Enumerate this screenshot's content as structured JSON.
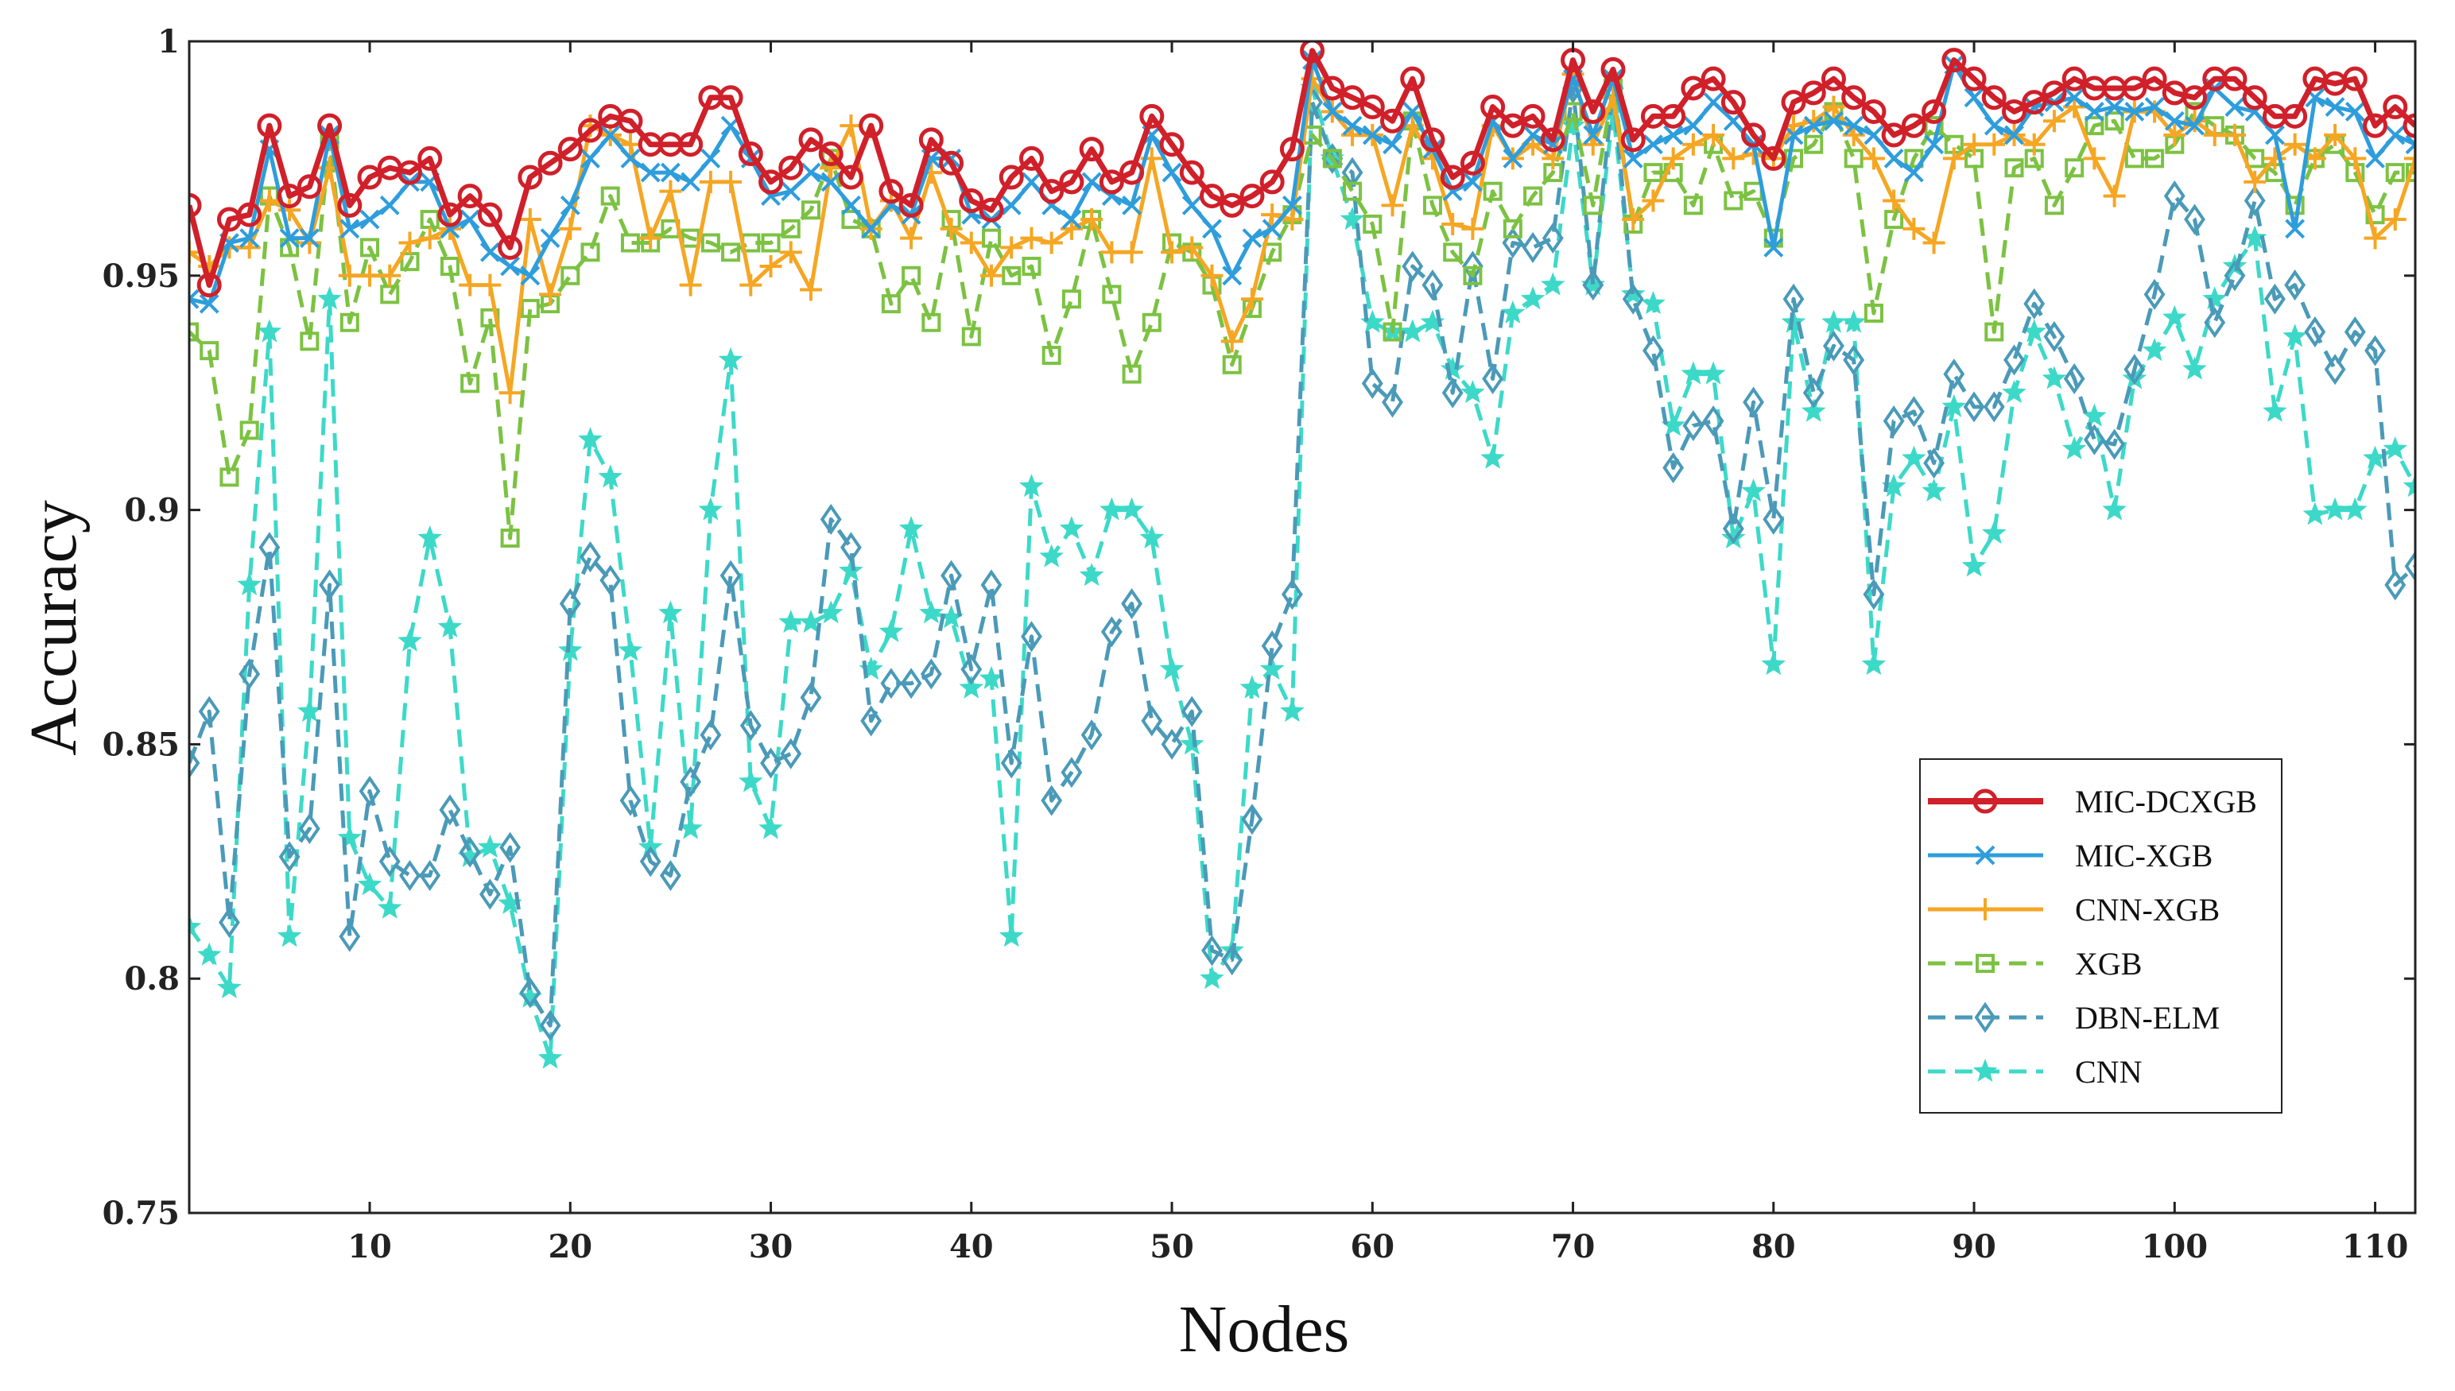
{
  "chart_data": {
    "type": "line",
    "title": "",
    "xlabel": "Nodes",
    "ylabel": "Accuracy",
    "xlim": [
      1,
      112
    ],
    "ylim": [
      0.75,
      1
    ],
    "xticks": [
      10,
      20,
      30,
      40,
      50,
      60,
      70,
      80,
      90,
      100,
      110
    ],
    "yticks": [
      0.75,
      0.8,
      0.85,
      0.9,
      0.95,
      1
    ],
    "ytick_labels": [
      "0.75",
      "0.8",
      "0.85",
      "0.9",
      "0.95",
      "1"
    ],
    "legend_position": "right",
    "grid": false,
    "x": [
      1,
      2,
      3,
      4,
      5,
      6,
      7,
      8,
      9,
      10,
      11,
      12,
      13,
      14,
      15,
      16,
      17,
      18,
      19,
      20,
      21,
      22,
      23,
      24,
      25,
      26,
      27,
      28,
      29,
      30,
      31,
      32,
      33,
      34,
      35,
      36,
      37,
      38,
      39,
      40,
      41,
      42,
      43,
      44,
      45,
      46,
      47,
      48,
      49,
      50,
      51,
      52,
      53,
      54,
      55,
      56,
      57,
      58,
      59,
      60,
      61,
      62,
      63,
      64,
      65,
      66,
      67,
      68,
      69,
      70,
      71,
      72,
      73,
      74,
      75,
      76,
      77,
      78,
      79,
      80,
      81,
      82,
      83,
      84,
      85,
      86,
      87,
      88,
      89,
      90,
      91,
      92,
      93,
      94,
      95,
      96,
      97,
      98,
      99,
      100,
      101,
      102,
      103,
      104,
      105,
      106,
      107,
      108,
      109,
      110,
      111,
      112
    ],
    "series": [
      {
        "name": "MIC-DCXGB",
        "color": "#d0202a",
        "dash": false,
        "marker": "circle",
        "values": [
          0.965,
          0.948,
          0.962,
          0.963,
          0.982,
          0.967,
          0.969,
          0.982,
          0.965,
          0.971,
          0.973,
          0.972,
          0.975,
          0.963,
          0.967,
          0.963,
          0.956,
          0.971,
          0.974,
          0.977,
          0.981,
          0.984,
          0.983,
          0.978,
          0.978,
          0.978,
          0.988,
          0.988,
          0.976,
          0.97,
          0.973,
          0.979,
          0.976,
          0.971,
          0.982,
          0.968,
          0.965,
          0.979,
          0.974,
          0.966,
          0.964,
          0.971,
          0.975,
          0.968,
          0.97,
          0.977,
          0.97,
          0.972,
          0.984,
          0.978,
          0.972,
          0.967,
          0.965,
          0.967,
          0.97,
          0.977,
          0.998,
          0.99,
          0.988,
          0.986,
          0.983,
          0.992,
          0.979,
          0.971,
          0.974,
          0.986,
          0.982,
          0.984,
          0.979,
          0.996,
          0.985,
          0.994,
          0.979,
          0.984,
          0.984,
          0.99,
          0.992,
          0.987,
          0.98,
          0.975,
          0.987,
          0.989,
          0.992,
          0.988,
          0.985,
          0.98,
          0.982,
          0.985,
          0.996,
          0.992,
          0.988,
          0.985,
          0.987,
          0.989,
          0.992,
          0.99,
          0.99,
          0.99,
          0.992,
          0.989,
          0.988,
          0.992,
          0.992,
          0.988,
          0.984,
          0.984,
          0.992,
          0.991,
          0.992,
          0.982,
          0.986,
          0.982
        ]
      },
      {
        "name": "MIC-XGB",
        "color": "#2e9ddc",
        "dash": false,
        "marker": "x",
        "values": [
          0.945,
          0.944,
          0.957,
          0.958,
          0.977,
          0.958,
          0.958,
          0.98,
          0.96,
          0.962,
          0.965,
          0.97,
          0.97,
          0.96,
          0.962,
          0.955,
          0.952,
          0.95,
          0.958,
          0.965,
          0.975,
          0.98,
          0.975,
          0.972,
          0.972,
          0.97,
          0.975,
          0.982,
          0.975,
          0.967,
          0.968,
          0.972,
          0.97,
          0.965,
          0.96,
          0.965,
          0.963,
          0.975,
          0.975,
          0.963,
          0.962,
          0.965,
          0.97,
          0.965,
          0.962,
          0.97,
          0.967,
          0.965,
          0.98,
          0.972,
          0.965,
          0.96,
          0.95,
          0.958,
          0.96,
          0.965,
          0.996,
          0.985,
          0.982,
          0.98,
          0.978,
          0.985,
          0.977,
          0.968,
          0.97,
          0.983,
          0.975,
          0.98,
          0.978,
          0.992,
          0.98,
          0.992,
          0.975,
          0.978,
          0.98,
          0.982,
          0.987,
          0.983,
          0.978,
          0.956,
          0.98,
          0.982,
          0.983,
          0.982,
          0.98,
          0.975,
          0.972,
          0.978,
          0.995,
          0.988,
          0.982,
          0.98,
          0.986,
          0.987,
          0.988,
          0.985,
          0.986,
          0.985,
          0.986,
          0.983,
          0.982,
          0.99,
          0.986,
          0.985,
          0.98,
          0.96,
          0.988,
          0.986,
          0.985,
          0.975,
          0.98,
          0.978
        ]
      },
      {
        "name": "CNN-XGB",
        "color": "#f5a623",
        "dash": false,
        "marker": "plus",
        "values": [
          0.955,
          0.952,
          0.956,
          0.956,
          0.966,
          0.964,
          0.957,
          0.973,
          0.95,
          0.95,
          0.95,
          0.957,
          0.958,
          0.96,
          0.948,
          0.948,
          0.925,
          0.962,
          0.946,
          0.96,
          0.982,
          0.98,
          0.978,
          0.958,
          0.968,
          0.948,
          0.97,
          0.97,
          0.948,
          0.952,
          0.955,
          0.947,
          0.973,
          0.982,
          0.96,
          0.966,
          0.958,
          0.972,
          0.96,
          0.957,
          0.95,
          0.956,
          0.958,
          0.957,
          0.96,
          0.962,
          0.955,
          0.955,
          0.975,
          0.955,
          0.956,
          0.95,
          0.936,
          0.945,
          0.963,
          0.962,
          0.992,
          0.985,
          0.98,
          0.98,
          0.965,
          0.982,
          0.975,
          0.961,
          0.96,
          0.982,
          0.975,
          0.978,
          0.975,
          0.993,
          0.978,
          0.988,
          0.962,
          0.966,
          0.975,
          0.978,
          0.98,
          0.975,
          0.976,
          0.975,
          0.982,
          0.983,
          0.986,
          0.98,
          0.975,
          0.966,
          0.96,
          0.957,
          0.975,
          0.978,
          0.978,
          0.98,
          0.978,
          0.983,
          0.986,
          0.975,
          0.967,
          0.985,
          0.985,
          0.98,
          0.983,
          0.98,
          0.98,
          0.97,
          0.975,
          0.978,
          0.975,
          0.98,
          0.975,
          0.958,
          0.962,
          0.975
        ]
      },
      {
        "name": "XGB",
        "color": "#7cc242",
        "dash": true,
        "marker": "square",
        "values": [
          0.938,
          0.934,
          0.907,
          0.917,
          0.967,
          0.956,
          0.936,
          0.979,
          0.94,
          0.956,
          0.946,
          0.953,
          0.962,
          0.952,
          0.927,
          0.941,
          0.894,
          0.943,
          0.944,
          0.95,
          0.955,
          0.967,
          0.957,
          0.957,
          0.96,
          0.958,
          0.957,
          0.955,
          0.957,
          0.957,
          0.96,
          0.964,
          0.975,
          0.962,
          0.96,
          0.944,
          0.95,
          0.94,
          0.962,
          0.937,
          0.958,
          0.95,
          0.952,
          0.933,
          0.945,
          0.962,
          0.946,
          0.929,
          0.94,
          0.957,
          0.955,
          0.948,
          0.931,
          0.943,
          0.955,
          0.963,
          0.98,
          0.975,
          0.968,
          0.961,
          0.938,
          0.983,
          0.965,
          0.955,
          0.95,
          0.968,
          0.96,
          0.967,
          0.972,
          0.985,
          0.965,
          0.99,
          0.961,
          0.972,
          0.972,
          0.965,
          0.978,
          0.966,
          0.968,
          0.958,
          0.975,
          0.978,
          0.985,
          0.975,
          0.942,
          0.962,
          0.975,
          0.982,
          0.978,
          0.975,
          0.938,
          0.973,
          0.975,
          0.965,
          0.973,
          0.982,
          0.983,
          0.975,
          0.975,
          0.978,
          0.985,
          0.982,
          0.98,
          0.975,
          0.972,
          0.965,
          0.975,
          0.978,
          0.972,
          0.963,
          0.972,
          0.972
        ]
      },
      {
        "name": "DBN-ELM",
        "color": "#4a9ab8",
        "dash": true,
        "marker": "diamond",
        "values": [
          0.846,
          0.857,
          0.812,
          0.865,
          0.892,
          0.826,
          0.832,
          0.884,
          0.809,
          0.84,
          0.825,
          0.822,
          0.822,
          0.836,
          0.827,
          0.818,
          0.828,
          0.797,
          0.79,
          0.88,
          0.89,
          0.885,
          0.838,
          0.825,
          0.822,
          0.842,
          0.852,
          0.886,
          0.854,
          0.846,
          0.848,
          0.86,
          0.898,
          0.892,
          0.855,
          0.863,
          0.863,
          0.865,
          0.886,
          0.866,
          0.884,
          0.846,
          0.873,
          0.838,
          0.844,
          0.852,
          0.874,
          0.88,
          0.855,
          0.85,
          0.857,
          0.806,
          0.804,
          0.834,
          0.871,
          0.882,
          0.987,
          0.975,
          0.972,
          0.927,
          0.923,
          0.952,
          0.948,
          0.925,
          0.952,
          0.928,
          0.957,
          0.956,
          0.958,
          0.99,
          0.948,
          0.99,
          0.945,
          0.934,
          0.909,
          0.918,
          0.919,
          0.896,
          0.923,
          0.898,
          0.945,
          0.925,
          0.935,
          0.932,
          0.882,
          0.919,
          0.921,
          0.91,
          0.929,
          0.922,
          0.922,
          0.932,
          0.944,
          0.937,
          0.928,
          0.915,
          0.914,
          0.93,
          0.946,
          0.967,
          0.962,
          0.94,
          0.95,
          0.966,
          0.945,
          0.948,
          0.938,
          0.93,
          0.938,
          0.934,
          0.884,
          0.888
        ]
      },
      {
        "name": "CNN",
        "color": "#3dd9c8",
        "dash": true,
        "marker": "star",
        "values": [
          0.811,
          0.805,
          0.798,
          0.884,
          0.938,
          0.809,
          0.857,
          0.945,
          0.83,
          0.82,
          0.815,
          0.872,
          0.894,
          0.875,
          0.826,
          0.828,
          0.816,
          0.796,
          0.783,
          0.87,
          0.915,
          0.907,
          0.87,
          0.828,
          0.878,
          0.832,
          0.9,
          0.932,
          0.842,
          0.832,
          0.876,
          0.876,
          0.878,
          0.887,
          0.866,
          0.874,
          0.896,
          0.878,
          0.877,
          0.862,
          0.864,
          0.809,
          0.905,
          0.89,
          0.896,
          0.886,
          0.9,
          0.9,
          0.894,
          0.866,
          0.85,
          0.8,
          0.806,
          0.862,
          0.866,
          0.857,
          0.99,
          0.975,
          0.962,
          0.94,
          0.938,
          0.938,
          0.94,
          0.93,
          0.925,
          0.911,
          0.942,
          0.945,
          0.948,
          0.982,
          0.948,
          0.985,
          0.946,
          0.944,
          0.918,
          0.929,
          0.929,
          0.894,
          0.904,
          0.867,
          0.94,
          0.921,
          0.94,
          0.94,
          0.867,
          0.905,
          0.911,
          0.904,
          0.922,
          0.888,
          0.895,
          0.925,
          0.938,
          0.928,
          0.913,
          0.92,
          0.9,
          0.928,
          0.934,
          0.941,
          0.93,
          0.945,
          0.952,
          0.958,
          0.921,
          0.937,
          0.899,
          0.9,
          0.9,
          0.911,
          0.913,
          0.905
        ]
      }
    ]
  }
}
